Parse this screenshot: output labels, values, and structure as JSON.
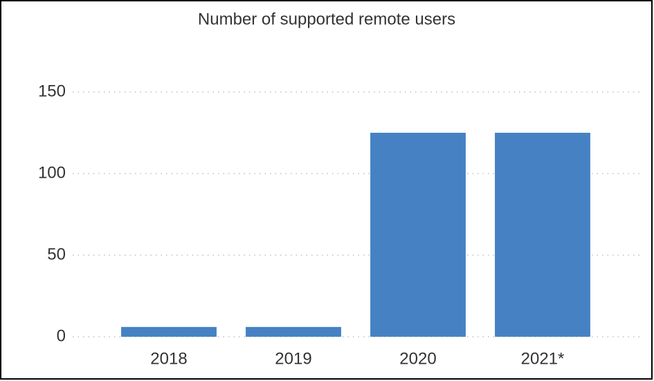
{
  "chart_data": {
    "type": "bar",
    "title": "Number of supported remote users",
    "categories": [
      "2018",
      "2019",
      "2020",
      "2021*"
    ],
    "values": [
      6,
      6,
      125,
      125
    ],
    "color": "#4682c3",
    "ylim": [
      0,
      175
    ],
    "yticks": [
      0,
      50,
      100,
      150
    ],
    "grid": true
  }
}
